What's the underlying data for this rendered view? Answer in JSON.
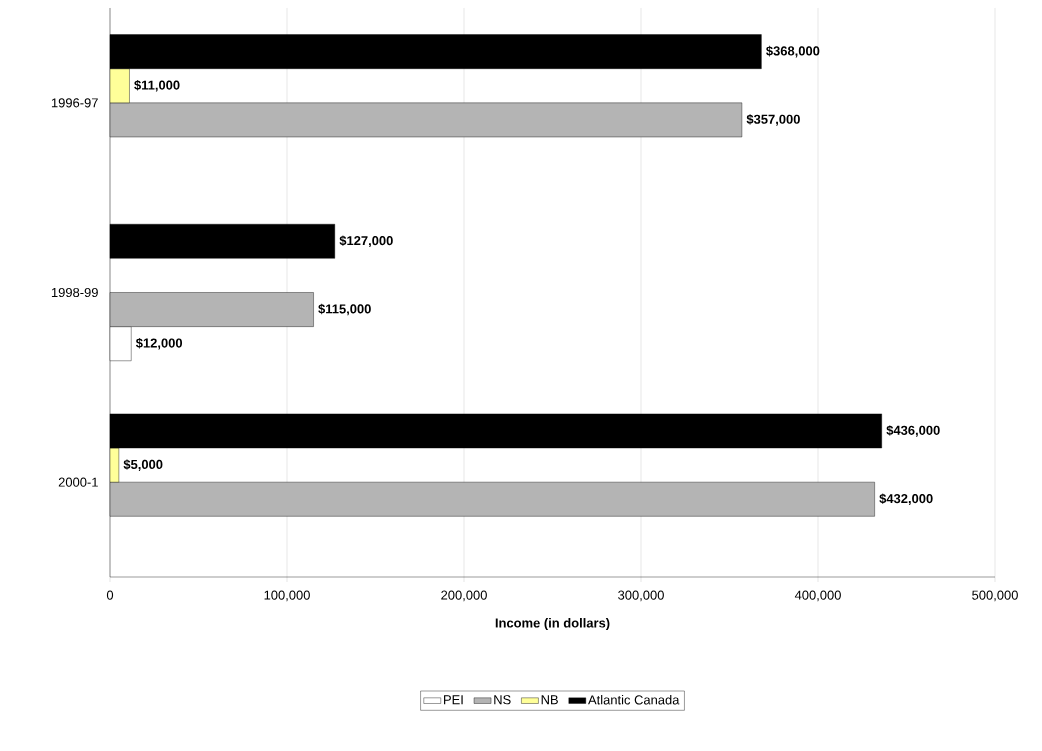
{
  "chart_data": {
    "type": "bar",
    "orientation": "horizontal",
    "xlabel": "Income (in dollars)",
    "categories": [
      "1996-97",
      "1998-99",
      "2000-1"
    ],
    "series": [
      {
        "name": "PEI",
        "color": "#ffffff",
        "values": [
          null,
          12000,
          null
        ],
        "value_labels": [
          null,
          "$12,000",
          null
        ]
      },
      {
        "name": "NS",
        "color": "#b4b4b4",
        "values": [
          357000,
          115000,
          432000
        ],
        "value_labels": [
          "$357,000",
          "$115,000",
          "$432,000"
        ]
      },
      {
        "name": "NB",
        "color": "#ffff99",
        "values": [
          11000,
          null,
          5000
        ],
        "value_labels": [
          "$11,000",
          null,
          "$5,000"
        ]
      },
      {
        "name": "Atlantic Canada",
        "color": "#000000",
        "values": [
          368000,
          127000,
          436000
        ],
        "value_labels": [
          "$368,000",
          "$127,000",
          "$436,000"
        ]
      }
    ],
    "xlim": [
      0,
      500000
    ],
    "xticks": [
      0,
      {
        "value": 100000,
        "label": "100,000"
      },
      {
        "value": 200000,
        "label": "200,000"
      },
      {
        "value": 300000,
        "label": "300,000"
      },
      {
        "value": 400000,
        "label": "400,000"
      },
      {
        "value": 500000,
        "label": "500,000"
      }
    ],
    "grid": "x",
    "legend": "bottom"
  }
}
